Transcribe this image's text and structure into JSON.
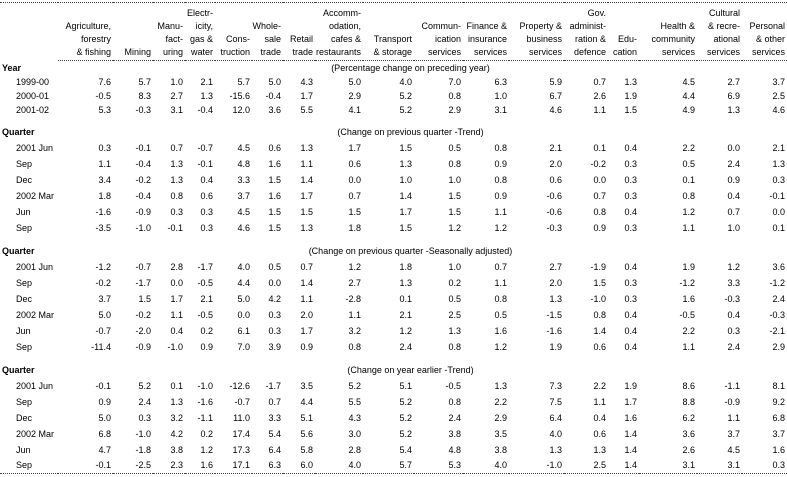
{
  "table": {
    "columns": [
      {
        "lines": [
          "Agriculture,",
          "forestry",
          "& fishing"
        ]
      },
      {
        "lines": [
          "Mining"
        ]
      },
      {
        "lines": [
          "Manu-",
          "fact-",
          "uring"
        ]
      },
      {
        "lines": [
          "Electr-",
          "icity,",
          "gas &",
          "water"
        ]
      },
      {
        "lines": [
          "Cons-",
          "truction"
        ]
      },
      {
        "lines": [
          "Whole-",
          "sale",
          "trade"
        ]
      },
      {
        "lines": [
          "Retail",
          "trade"
        ]
      },
      {
        "lines": [
          "Accomm-",
          "odation,",
          "cafes &",
          "restaurants"
        ]
      },
      {
        "lines": [
          "Transport",
          "& storage"
        ]
      },
      {
        "lines": [
          "Commun-",
          "ication",
          "services"
        ]
      },
      {
        "lines": [
          "Finance &",
          "insurance",
          "services"
        ]
      },
      {
        "lines": [
          "Property &",
          "business",
          "services"
        ]
      },
      {
        "lines": [
          "Gov.",
          "administ-",
          "ration &",
          "defence"
        ]
      },
      {
        "lines": [
          "Edu-",
          "cation"
        ]
      },
      {
        "lines": [
          "Health &",
          "community",
          "services"
        ]
      },
      {
        "lines": [
          "Cultural",
          "& recre-",
          "ational",
          "services"
        ]
      },
      {
        "lines": [
          "Personal",
          "& other",
          "services"
        ]
      }
    ],
    "sections": [
      {
        "label": "Year",
        "note": "(Percentage change on preceding year)",
        "rows": [
          {
            "label": "1999-00",
            "values": [
              "7.6",
              "5.7",
              "1.0",
              "2.1",
              "5.7",
              "5.0",
              "4.3",
              "5.0",
              "4.0",
              "7.0",
              "6.3",
              "5.9",
              "0.7",
              "1.3",
              "4.5",
              "2.7",
              "3.7"
            ]
          },
          {
            "label": "2000-01",
            "values": [
              "-0.5",
              "8.3",
              "2.7",
              "1.3",
              "-15.6",
              "-0.4",
              "1.7",
              "2.9",
              "5.2",
              "0.8",
              "1.0",
              "6.7",
              "2.6",
              "1.9",
              "4.4",
              "6.9",
              "2.5"
            ]
          },
          {
            "label": "2001-02",
            "values": [
              "5.3",
              "-0.3",
              "3.1",
              "-0.4",
              "12.0",
              "3.6",
              "5.5",
              "4.1",
              "5.2",
              "2.9",
              "3.1",
              "4.6",
              "1.1",
              "1.5",
              "4.9",
              "1.3",
              "4.6"
            ]
          }
        ]
      },
      {
        "label": "Quarter",
        "note": "(Change on previous quarter -Trend)",
        "rows": [
          {
            "label": "2001 Jun",
            "values": [
              "0.3",
              "-0.1",
              "0.7",
              "-0.7",
              "4.5",
              "0.6",
              "1.3",
              "1.7",
              "1.5",
              "0.5",
              "0.8",
              "2.1",
              "0.1",
              "0.4",
              "2.2",
              "0.0",
              "2.1"
            ]
          },
          {
            "label": "Sep",
            "values": [
              "1.1",
              "-0.4",
              "1.3",
              "-0.1",
              "4.8",
              "1.6",
              "1.1",
              "0.6",
              "1.3",
              "0.8",
              "0.9",
              "2.0",
              "-0.2",
              "0.3",
              "0.5",
              "2.4",
              "1.3"
            ]
          },
          {
            "label": "Dec",
            "values": [
              "3.4",
              "-0.2",
              "1.3",
              "0.4",
              "3.3",
              "1.5",
              "1.4",
              "0.0",
              "1.0",
              "1.0",
              "0.8",
              "0.6",
              "0.0",
              "0.3",
              "0.1",
              "0.9",
              "0.3"
            ]
          },
          {
            "label": "2002 Mar",
            "values": [
              "1.8",
              "-0.4",
              "0.8",
              "0.6",
              "3.7",
              "1.6",
              "1.7",
              "0.7",
              "1.4",
              "1.5",
              "0.9",
              "-0.6",
              "0.7",
              "0.3",
              "0.8",
              "0.4",
              "-0.1"
            ]
          },
          {
            "label": "Jun",
            "values": [
              "-1.6",
              "-0.9",
              "0.3",
              "0.3",
              "4.5",
              "1.5",
              "1.5",
              "1.5",
              "1.7",
              "1.5",
              "1.1",
              "-0.6",
              "0.8",
              "0.4",
              "1.2",
              "0.7",
              "0.0"
            ]
          },
          {
            "label": "Sep",
            "values": [
              "-3.5",
              "-1.0",
              "-0.1",
              "0.3",
              "4.6",
              "1.5",
              "1.3",
              "1.8",
              "1.5",
              "1.2",
              "1.2",
              "-0.3",
              "0.9",
              "0.3",
              "1.1",
              "1.0",
              "0.1"
            ]
          }
        ]
      },
      {
        "label": "Quarter",
        "note": "(Change on previous quarter -Seasonally adjusted)",
        "rows": [
          {
            "label": "2001 Jun",
            "values": [
              "-1.2",
              "-0.7",
              "2.8",
              "-1.7",
              "4.0",
              "0.5",
              "0.7",
              "1.2",
              "1.8",
              "1.0",
              "0.7",
              "2.7",
              "-1.9",
              "0.4",
              "1.9",
              "1.2",
              "3.6"
            ]
          },
          {
            "label": "Sep",
            "values": [
              "-0.2",
              "-1.7",
              "0.0",
              "-0.5",
              "4.4",
              "0.0",
              "1.4",
              "2.7",
              "1.3",
              "0.2",
              "1.1",
              "2.0",
              "1.5",
              "0.3",
              "-1.2",
              "3.3",
              "-1.2"
            ]
          },
          {
            "label": "Dec",
            "values": [
              "3.7",
              "1.5",
              "1.7",
              "2.1",
              "5.0",
              "4.2",
              "1.1",
              "-2.8",
              "0.1",
              "0.5",
              "0.8",
              "1.3",
              "-1.0",
              "0.3",
              "1.6",
              "-0.3",
              "2.4"
            ]
          },
          {
            "label": "2002 Mar",
            "values": [
              "5.0",
              "-0.2",
              "1.1",
              "-0.5",
              "0.0",
              "0.3",
              "2.0",
              "1.1",
              "2.1",
              "2.5",
              "0.5",
              "-1.5",
              "0.8",
              "0.4",
              "-0.5",
              "0.4",
              "-0.3"
            ]
          },
          {
            "label": "Jun",
            "values": [
              "-0.7",
              "-2.0",
              "0.4",
              "0.2",
              "6.1",
              "0.3",
              "1.7",
              "3.2",
              "1.2",
              "1.3",
              "1.6",
              "-1.6",
              "1.4",
              "0.4",
              "2.2",
              "0.3",
              "-2.1"
            ]
          },
          {
            "label": "Sep",
            "values": [
              "-11.4",
              "-0.9",
              "-1.0",
              "0.9",
              "7.0",
              "3.9",
              "0.9",
              "0.8",
              "2.4",
              "0.8",
              "1.2",
              "1.9",
              "0.6",
              "0.4",
              "1.1",
              "2.4",
              "2.9"
            ]
          }
        ]
      },
      {
        "label": "Quarter",
        "note": "(Change on year earlier -Trend)",
        "rows": [
          {
            "label": "2001 Jun",
            "values": [
              "-0.1",
              "5.2",
              "0.1",
              "-1.0",
              "-12.6",
              "-1.7",
              "3.5",
              "5.2",
              "5.1",
              "-0.5",
              "1.3",
              "7.3",
              "2.2",
              "1.9",
              "8.6",
              "-1.1",
              "8.1"
            ]
          },
          {
            "label": "Sep",
            "values": [
              "0.9",
              "2.4",
              "1.3",
              "-1.6",
              "-0.7",
              "0.7",
              "4.4",
              "5.5",
              "5.2",
              "0.8",
              "2.2",
              "7.5",
              "1.1",
              "1.7",
              "8.8",
              "-0.9",
              "9.2"
            ]
          },
          {
            "label": "Dec",
            "values": [
              "5.0",
              "0.3",
              "3.2",
              "-1.1",
              "11.0",
              "3.3",
              "5.1",
              "4.3",
              "5.2",
              "2.4",
              "2.9",
              "6.4",
              "0.4",
              "1.6",
              "6.2",
              "1.1",
              "6.8"
            ]
          },
          {
            "label": "2002 Mar",
            "values": [
              "6.8",
              "-1.0",
              "4.2",
              "0.2",
              "17.4",
              "5.4",
              "5.6",
              "3.0",
              "5.2",
              "3.8",
              "3.5",
              "4.0",
              "0.6",
              "1.4",
              "3.6",
              "3.7",
              "3.7"
            ]
          },
          {
            "label": "Jun",
            "values": [
              "4.7",
              "-1.8",
              "3.8",
              "1.2",
              "17.3",
              "6.4",
              "5.8",
              "2.8",
              "5.4",
              "4.8",
              "3.8",
              "1.3",
              "1.3",
              "1.4",
              "2.6",
              "4.5",
              "1.6"
            ]
          },
          {
            "label": "Sep",
            "values": [
              "-0.1",
              "-2.5",
              "2.3",
              "1.6",
              "17.1",
              "6.3",
              "6.0",
              "4.0",
              "5.7",
              "5.3",
              "4.0",
              "-1.0",
              "2.5",
              "1.4",
              "3.1",
              "3.1",
              "0.3"
            ]
          }
        ]
      }
    ]
  }
}
